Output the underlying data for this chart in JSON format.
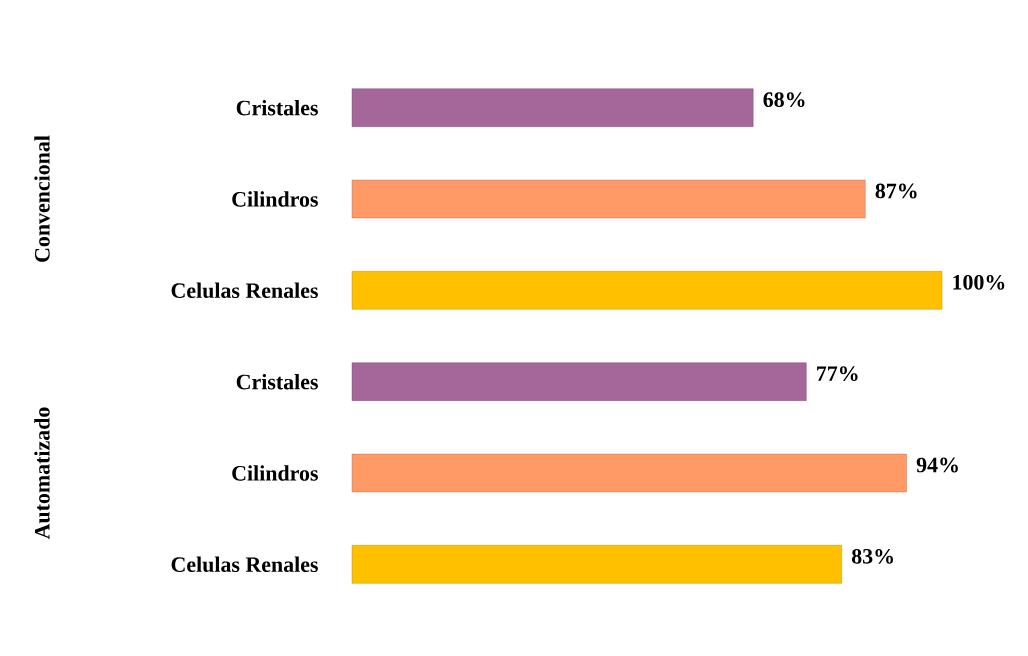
{
  "chart_data": {
    "type": "bar",
    "orientation": "horizontal",
    "categories": [
      "Cristales",
      "Cilindros",
      "Celulas Renales",
      "Cristales",
      "Cilindros",
      "Celulas Renales"
    ],
    "values": [
      68,
      87,
      100,
      77,
      94,
      83
    ],
    "value_labels": [
      "68%",
      "87%",
      "100%",
      "77%",
      "94%",
      "83%"
    ],
    "colors": [
      "#a5669a",
      "#ff9966",
      "#ffc000",
      "#a5669a",
      "#ff9966",
      "#ffc000"
    ],
    "annotations": [
      "Convencional",
      "Automatizado"
    ]
  }
}
